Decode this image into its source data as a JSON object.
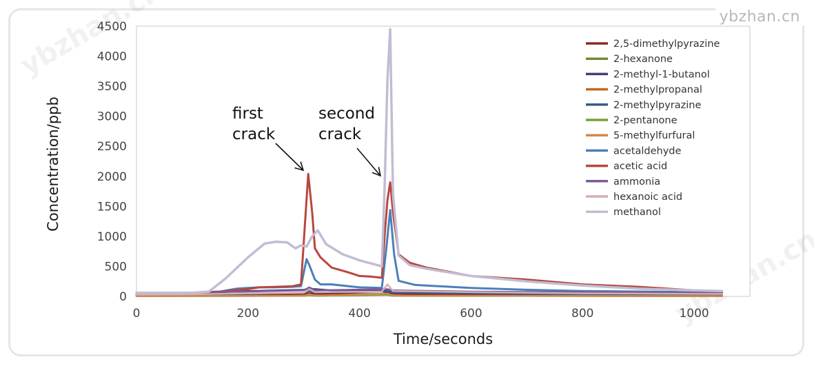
{
  "watermark": "ybzhan.cn",
  "chart_data": {
    "type": "line",
    "xlabel": "Time/seconds",
    "ylabel": "Concentration/ppb",
    "xlim": [
      0,
      1100
    ],
    "ylim": [
      0,
      4500
    ],
    "xticks": [
      0,
      200,
      400,
      600,
      800,
      1000
    ],
    "yticks": [
      0,
      500,
      1000,
      1500,
      2000,
      2500,
      3000,
      3500,
      4000,
      4500
    ],
    "legend_position": "top-right",
    "grid": false,
    "annotations": [
      {
        "lines": [
          "first",
          "crack"
        ],
        "x": 305,
        "y": 2050
      },
      {
        "lines": [
          "second",
          "crack"
        ],
        "x": 445,
        "y": 1980
      }
    ],
    "series": [
      {
        "name": "2,5-dimethylpyrazine",
        "color": "#8b2a22",
        "width": 2.5,
        "x": [
          0,
          100,
          200,
          300,
          310,
          320,
          400,
          440,
          450,
          460,
          500,
          700,
          900,
          1050
        ],
        "y": [
          15,
          20,
          30,
          40,
          55,
          45,
          40,
          40,
          60,
          45,
          35,
          25,
          20,
          15
        ]
      },
      {
        "name": "2-hexanone",
        "color": "#6f8a3a",
        "width": 2.5,
        "x": [
          0,
          300,
          310,
          320,
          450,
          460,
          700,
          1050
        ],
        "y": [
          8,
          10,
          25,
          12,
          30,
          12,
          8,
          5
        ]
      },
      {
        "name": "2-methyl-1-butanol",
        "color": "#4a3a78",
        "width": 2.5,
        "x": [
          0,
          100,
          200,
          300,
          310,
          350,
          440,
          450,
          460,
          600,
          800,
          1050
        ],
        "y": [
          40,
          50,
          90,
          110,
          130,
          100,
          90,
          110,
          90,
          70,
          60,
          50
        ]
      },
      {
        "name": "2-methylpropanal",
        "color": "#c06a22",
        "width": 2.5,
        "x": [
          0,
          300,
          310,
          320,
          450,
          460,
          1050
        ],
        "y": [
          5,
          10,
          30,
          10,
          40,
          10,
          5
        ]
      },
      {
        "name": "2-methylpyrazine",
        "color": "#3a5a8a",
        "width": 2.5,
        "x": [
          0,
          200,
          300,
          310,
          320,
          450,
          460,
          700,
          1050
        ],
        "y": [
          20,
          40,
          60,
          90,
          60,
          80,
          60,
          40,
          25
        ]
      },
      {
        "name": "2-pentanone",
        "color": "#76a03a",
        "width": 2.5,
        "x": [
          0,
          300,
          310,
          320,
          450,
          460,
          1050
        ],
        "y": [
          5,
          8,
          20,
          8,
          25,
          8,
          5
        ]
      },
      {
        "name": "5-methylfurfural",
        "color": "#d08850",
        "width": 2.5,
        "x": [
          0,
          300,
          310,
          320,
          450,
          460,
          1050
        ],
        "y": [
          5,
          10,
          35,
          12,
          45,
          12,
          5
        ]
      },
      {
        "name": "acetaldehyde",
        "color": "#4a80b8",
        "width": 3,
        "x": [
          0,
          50,
          100,
          150,
          180,
          200,
          220,
          250,
          280,
          295,
          305,
          310,
          320,
          330,
          350,
          400,
          440,
          448,
          455,
          462,
          470,
          500,
          600,
          700,
          800,
          900,
          1000,
          1050
        ],
        "y": [
          50,
          55,
          60,
          80,
          130,
          140,
          150,
          150,
          160,
          170,
          620,
          520,
          280,
          200,
          200,
          150,
          140,
          800,
          1440,
          700,
          260,
          190,
          140,
          110,
          90,
          80,
          70,
          60
        ]
      },
      {
        "name": "acetic acid",
        "color": "#b8473c",
        "width": 3,
        "x": [
          0,
          50,
          100,
          150,
          200,
          220,
          250,
          280,
          295,
          300,
          308,
          315,
          320,
          330,
          350,
          380,
          400,
          420,
          440,
          445,
          450,
          455,
          460,
          470,
          490,
          520,
          600,
          700,
          800,
          900,
          1000,
          1050
        ],
        "y": [
          50,
          55,
          60,
          80,
          120,
          150,
          160,
          170,
          200,
          900,
          2040,
          1400,
          800,
          650,
          480,
          400,
          340,
          330,
          310,
          1000,
          1600,
          1900,
          1400,
          700,
          560,
          480,
          340,
          280,
          200,
          160,
          100,
          80
        ]
      },
      {
        "name": "ammonia",
        "color": "#7a5a9a",
        "width": 2.5,
        "x": [
          0,
          100,
          200,
          300,
          310,
          320,
          450,
          460,
          600,
          800,
          1050
        ],
        "y": [
          60,
          65,
          80,
          100,
          150,
          100,
          120,
          100,
          80,
          70,
          60
        ]
      },
      {
        "name": "hexanoic acid",
        "color": "#d4aeb0",
        "width": 2.5,
        "x": [
          0,
          100,
          200,
          300,
          310,
          320,
          440,
          450,
          460,
          600,
          800,
          1050
        ],
        "y": [
          30,
          35,
          50,
          60,
          120,
          70,
          80,
          200,
          90,
          70,
          50,
          40
        ]
      },
      {
        "name": "methanol",
        "color": "#c3bcd4",
        "width": 3.5,
        "x": [
          0,
          100,
          130,
          160,
          200,
          230,
          250,
          270,
          285,
          295,
          305,
          315,
          325,
          340,
          370,
          400,
          440,
          445,
          450,
          455,
          460,
          470,
          490,
          520,
          560,
          600,
          700,
          800,
          900,
          1000,
          1050
        ],
        "y": [
          60,
          60,
          80,
          300,
          650,
          880,
          910,
          900,
          800,
          850,
          830,
          1000,
          1100,
          870,
          700,
          600,
          500,
          1800,
          3600,
          4450,
          1700,
          680,
          520,
          460,
          400,
          340,
          250,
          180,
          130,
          100,
          90
        ]
      }
    ]
  }
}
